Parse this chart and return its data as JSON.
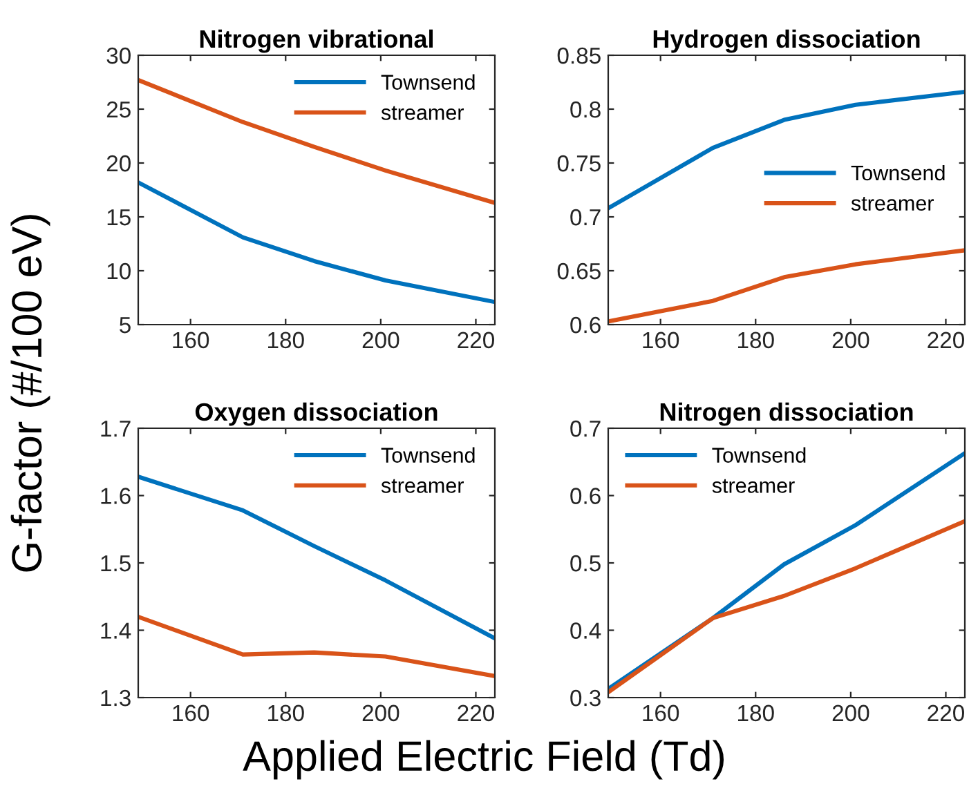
{
  "chart_data": [
    {
      "type": "line",
      "title": "Nitrogen vibrational",
      "ylabel": "G-factor (#/100 eV)",
      "x": [
        149,
        171,
        186,
        201,
        224
      ],
      "xlim": [
        149,
        224
      ],
      "xticks": [
        160,
        180,
        200,
        220
      ],
      "ylim": [
        5,
        30
      ],
      "yticks": [
        5,
        10,
        15,
        20,
        25,
        30
      ],
      "legend": "top right",
      "grid": false,
      "series": [
        {
          "name": "Townsend",
          "color": "#0072bd",
          "values": [
            18.2,
            13.1,
            10.9,
            9.1,
            7.1
          ]
        },
        {
          "name": "streamer",
          "color": "#d95319",
          "values": [
            27.7,
            23.8,
            21.5,
            19.3,
            16.3
          ]
        }
      ]
    },
    {
      "type": "line",
      "title": "Hydrogen dissociation",
      "x": [
        149,
        171,
        186,
        201,
        224
      ],
      "xlim": [
        149,
        224
      ],
      "xticks": [
        160,
        180,
        200,
        220
      ],
      "ylim": [
        0.6,
        0.85
      ],
      "yticks": [
        0.6,
        0.65,
        0.7,
        0.75,
        0.8,
        0.85
      ],
      "legend": "right",
      "grid": false,
      "series": [
        {
          "name": "Townsend",
          "color": "#0072bd",
          "values": [
            0.708,
            0.764,
            0.79,
            0.804,
            0.816
          ]
        },
        {
          "name": "streamer",
          "color": "#d95319",
          "values": [
            0.603,
            0.622,
            0.644,
            0.656,
            0.669
          ]
        }
      ]
    },
    {
      "type": "line",
      "title": "Oxygen dissociation",
      "x": [
        149,
        171,
        186,
        201,
        224
      ],
      "xlim": [
        149,
        224
      ],
      "xticks": [
        160,
        180,
        200,
        220
      ],
      "ylim": [
        1.3,
        1.7
      ],
      "yticks": [
        1.3,
        1.4,
        1.5,
        1.6,
        1.7
      ],
      "legend": "top right",
      "grid": false,
      "series": [
        {
          "name": "Townsend",
          "color": "#0072bd",
          "values": [
            1.628,
            1.578,
            1.525,
            1.474,
            1.388
          ]
        },
        {
          "name": "streamer",
          "color": "#d95319",
          "values": [
            1.42,
            1.364,
            1.367,
            1.361,
            1.332
          ]
        }
      ]
    },
    {
      "type": "line",
      "title": "Nitrogen dissociation",
      "xlabel": "Applied Electric Field (Td)",
      "x": [
        149,
        171,
        186,
        201,
        224
      ],
      "xlim": [
        149,
        224
      ],
      "xticks": [
        160,
        180,
        200,
        220
      ],
      "ylim": [
        0.3,
        0.7
      ],
      "yticks": [
        0.3,
        0.4,
        0.5,
        0.6,
        0.7
      ],
      "legend": "top left",
      "grid": false,
      "series": [
        {
          "name": "Townsend",
          "color": "#0072bd",
          "values": [
            0.313,
            0.418,
            0.498,
            0.556,
            0.663
          ]
        },
        {
          "name": "streamer",
          "color": "#d95319",
          "values": [
            0.308,
            0.418,
            0.451,
            0.492,
            0.562
          ]
        }
      ]
    }
  ]
}
